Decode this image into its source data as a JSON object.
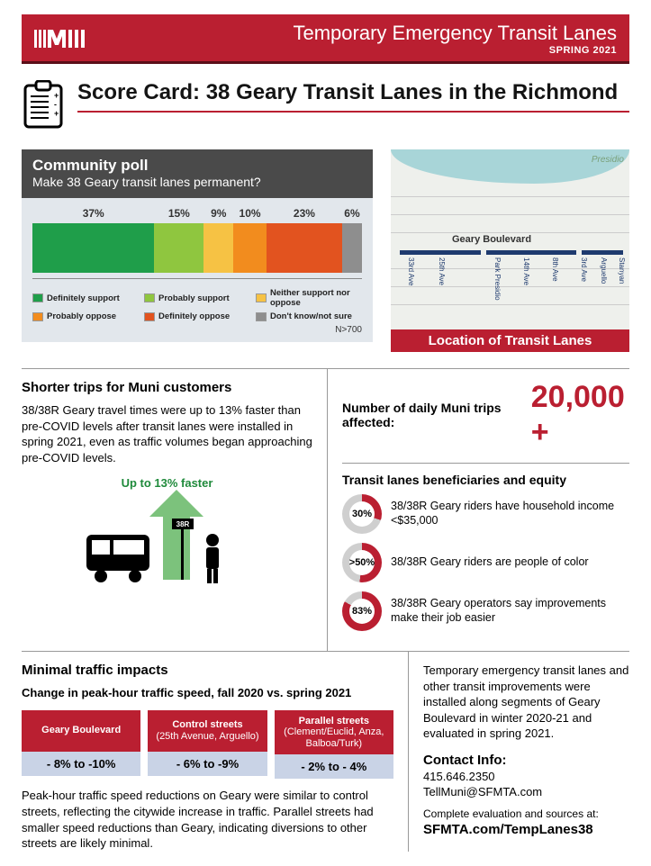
{
  "header": {
    "title": "Temporary Emergency Transit Lanes",
    "subtitle": "SPRING 2021"
  },
  "scorecard_title": "Score Card: 38 Geary Transit Lanes in the Richmond",
  "poll": {
    "title": "Community poll",
    "question": "Make 38 Geary transit lanes permanent?",
    "n_label": "N>700",
    "segments": [
      {
        "label": "37%",
        "pct": 37,
        "color": "#1f9e4a",
        "legend": "Definitely support"
      },
      {
        "label": "15%",
        "pct": 15,
        "color": "#8fc63f",
        "legend": "Probably support"
      },
      {
        "label": "9%",
        "pct": 9,
        "color": "#f6c244",
        "legend": "Neither support nor oppose"
      },
      {
        "label": "10%",
        "pct": 10,
        "color": "#f28c1e",
        "legend": "Probably oppose"
      },
      {
        "label": "23%",
        "pct": 23,
        "color": "#e2531f",
        "legend": "Definitely oppose"
      },
      {
        "label": "6%",
        "pct": 6,
        "color": "#8e8e8e",
        "legend": "Don't know/not sure"
      }
    ],
    "legend_order": [
      0,
      1,
      2,
      3,
      4,
      5
    ]
  },
  "map": {
    "caption": "Location of Transit Lanes",
    "street_label": "Geary Boulevard",
    "park_label": "Presidio",
    "ticks": [
      "33rd Ave",
      "25th Ave",
      "Park Presidio",
      "14th Ave",
      "8th Ave",
      "3rd Ave",
      "Arguello",
      "Stanyan"
    ]
  },
  "shorter": {
    "heading": "Shorter trips for Muni customers",
    "body": "38/38R Geary travel times were up to 13% faster than pre-COVID levels after transit lanes were installed in spring 2021, even as traffic volumes began approaching pre-COVID levels.",
    "faster_label": "Up to 13% faster",
    "bus_sign": "38R"
  },
  "trips": {
    "label": "Number of daily Muni trips affected:",
    "value": "20,000 +"
  },
  "equity": {
    "heading": "Transit lanes beneficiaries and equity",
    "items": [
      {
        "pct": 30,
        "label": "30%",
        "text": "38/38R Geary riders have household income <$35,000"
      },
      {
        "pct": 52,
        "label": ">50%",
        "text": "38/38R Geary riders are people of color"
      },
      {
        "pct": 83,
        "label": "83%",
        "text": "38/38R Geary operators say improvements make their job easier"
      }
    ],
    "ring_fg": "#ba1f31",
    "ring_bg": "#cfcfcf"
  },
  "traffic": {
    "heading": "Minimal traffic impacts",
    "subheading": "Change in peak-hour traffic speed, fall 2020 vs. spring 2021",
    "cols": [
      {
        "h1": "Geary Boulevard",
        "h2": "",
        "val": "- 8% to -10%"
      },
      {
        "h1": "Control streets",
        "h2": "(25th Avenue, Arguello)",
        "val": "- 6% to -9%"
      },
      {
        "h1": "Parallel streets",
        "h2": "(Clement/Euclid, Anza, Balboa/Turk)",
        "val": "- 2% to - 4%"
      }
    ],
    "body": "Peak-hour traffic speed reductions on Geary were similar to control streets, reflecting the citywide increase in traffic. Parallel streets had smaller speed reductions than Geary, indicating diversions to other streets are likely minimal."
  },
  "sidebar": {
    "body": "Temporary emergency transit lanes and other transit improvements were installed along segments of Geary Boulevard in winter 2020-21 and evaluated in spring 2021.",
    "contact_h": "Contact Info:",
    "phone": "415.646.2350",
    "email": "TellMuni@SFMTA.com",
    "src_intro": "Complete evaluation and sources at:",
    "src_url": "SFMTA.com/TempLanes38"
  }
}
